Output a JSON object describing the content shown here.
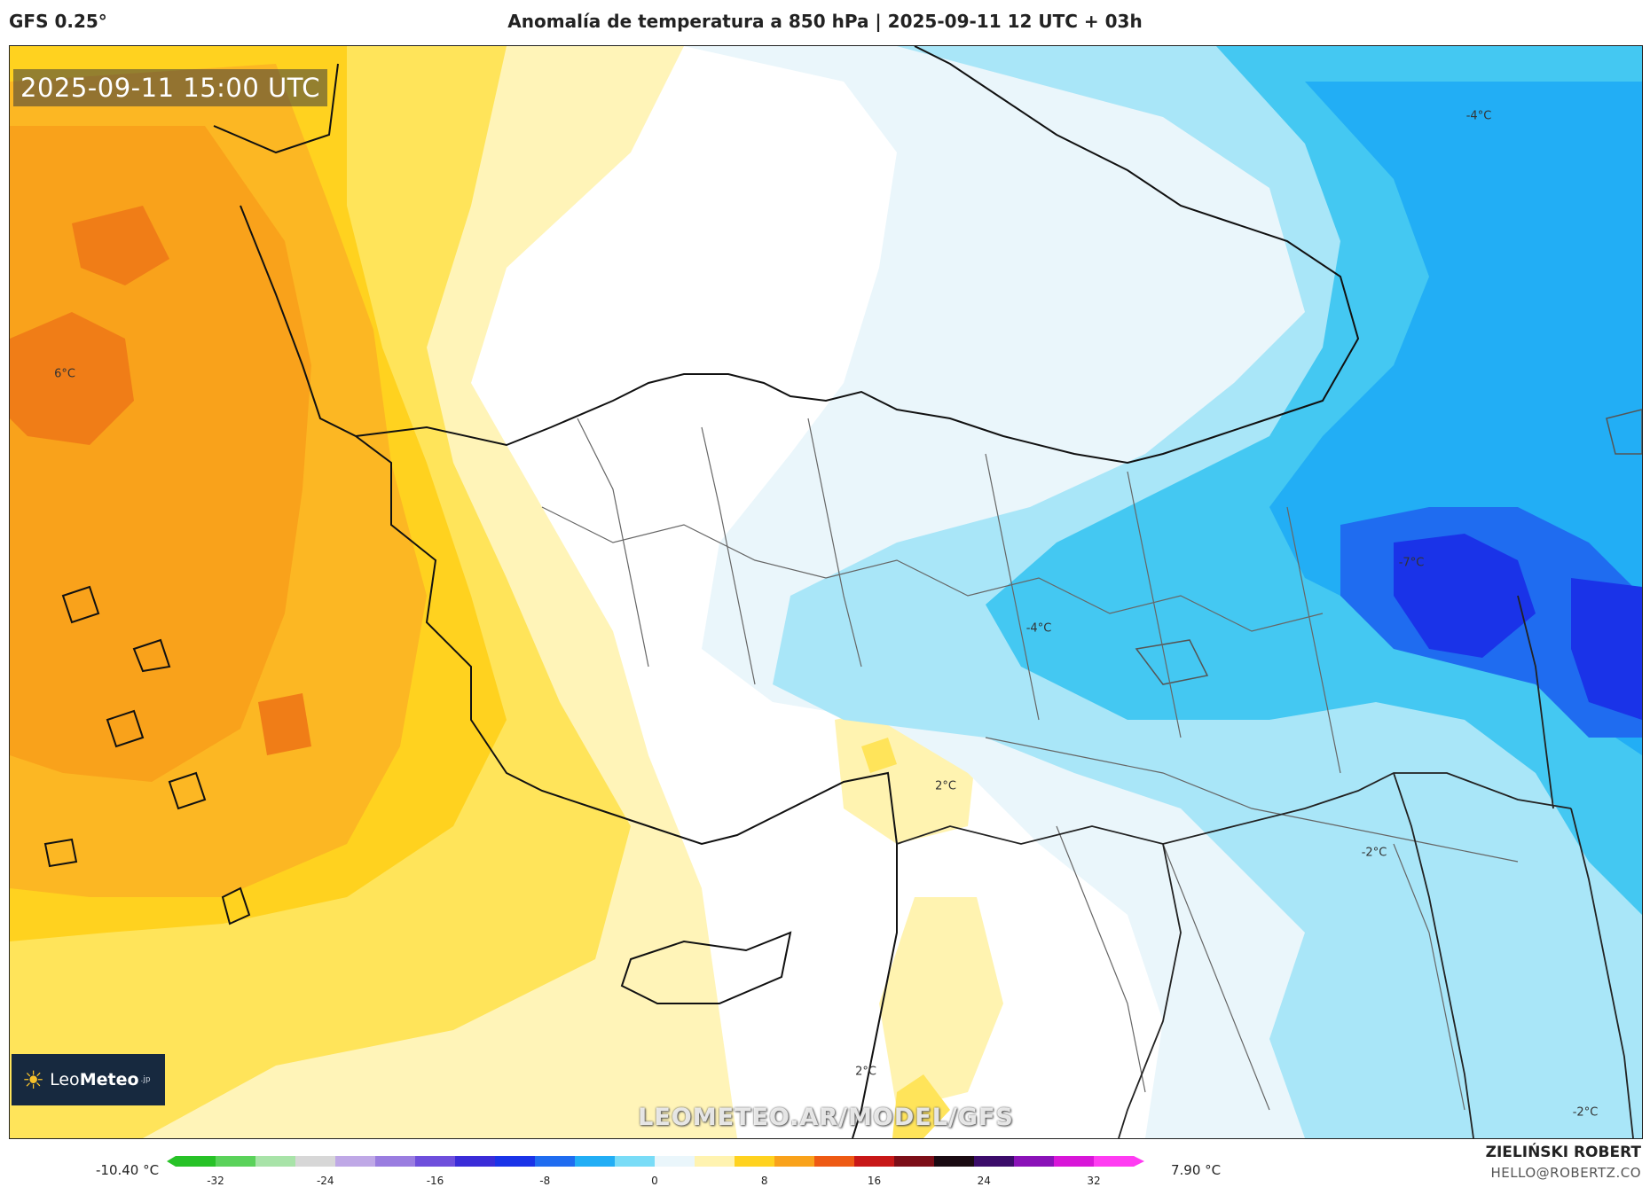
{
  "header": {
    "model": "GFS 0.25°",
    "title": "Anomalía de temperatura a 850 hPa | 2025-09-11 12 UTC + 03h"
  },
  "map": {
    "timestamp": "2025-09-11 15:00 UTC",
    "watermark": "LEOMETEO.AR/MODEL/GFS",
    "logo": {
      "brand_light": "Leo",
      "brand_bold": "Meteo",
      "brand_suffix": ".jp"
    },
    "contour_labels": [
      {
        "text": "6°C"
      },
      {
        "text": "-4°C"
      },
      {
        "text": "-7°C"
      },
      {
        "text": "-4°C"
      },
      {
        "text": "2°C"
      },
      {
        "text": "-2°C"
      },
      {
        "text": "2°C"
      },
      {
        "text": "-2°C"
      }
    ]
  },
  "legend": {
    "min_label": "-10.40 °C",
    "max_label": "7.90 °C",
    "ticks": [
      "-32",
      "-24",
      "-16",
      "-8",
      "0",
      "8",
      "16",
      "24",
      "32"
    ],
    "colors": [
      "#27c227",
      "#5ad25a",
      "#a8e3a8",
      "#d7d7d7",
      "#bfa8e6",
      "#9a7de0",
      "#6e4fdc",
      "#3a2cd8",
      "#1a33e8",
      "#1f6cf0",
      "#22aef5",
      "#79dcf7",
      "#eaf6fb",
      "#fff3b0",
      "#ffd21f",
      "#f9a21b",
      "#ee5a14",
      "#c81818",
      "#7c0e18",
      "#1a0a12",
      "#3b0c6a",
      "#8a12b8",
      "#d816d8",
      "#ff3cf2"
    ]
  },
  "credits": {
    "author": "ZIELIŃSKI ROBERT",
    "email": "HELLO@ROBERTZ.CO"
  }
}
